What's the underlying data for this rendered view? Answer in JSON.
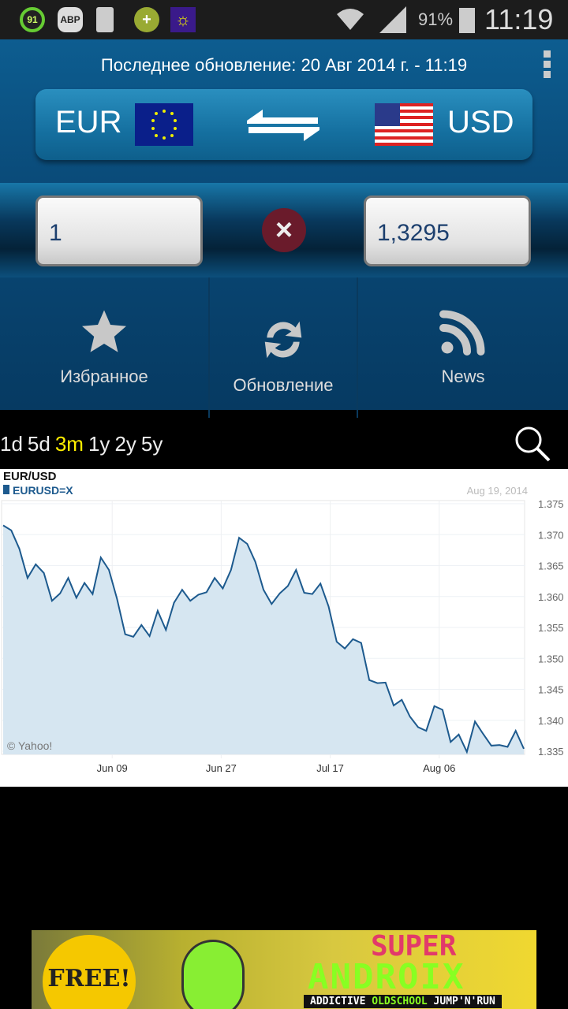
{
  "status_bar": {
    "notification_badge": "91",
    "adblock": "ABP",
    "battery": "91%",
    "time": "11:19",
    "icons": [
      "gauge-icon",
      "adblock-icon",
      "sim-icon",
      "plus-coin-icon",
      "lightbulb-icon",
      "wifi-icon",
      "signal-icon",
      "battery-icon"
    ]
  },
  "header": {
    "last_update": "Последнее обновление: 20 Авг 2014 г. - 11:19",
    "menu_icon": "overflow-menu-icon"
  },
  "converter": {
    "from_currency": "EUR",
    "to_currency": "USD",
    "from_amount": "1",
    "to_amount": "1,3295",
    "swap_icon": "swap-arrows-icon",
    "clear_icon": "clear-x-icon"
  },
  "actions": [
    {
      "label": "Избранное",
      "icon": "star-icon"
    },
    {
      "label": "Обновление",
      "icon": "refresh-icon"
    },
    {
      "label": "News",
      "icon": "rss-icon"
    }
  ],
  "periods": {
    "items": [
      "1d",
      "5d",
      "3m",
      "1y",
      "2y",
      "5y"
    ],
    "selected": "3m",
    "selected_color": "#ffee00"
  },
  "chart_data": {
    "type": "area",
    "title": "EUR/USD",
    "legend": "EURUSD=X",
    "date": "Aug 19, 2014",
    "credit": "© Yahoo!",
    "series_color": "#1d5a8e",
    "fill_color": "#d6e6f1",
    "ylim": [
      1.335,
      1.375
    ],
    "y_ticks": [
      "1.375",
      "1.370",
      "1.365",
      "1.360",
      "1.355",
      "1.350",
      "1.345",
      "1.340",
      "1.335"
    ],
    "x_tick_labels": [
      "Jun 09",
      "Jun 27",
      "Jul 17",
      "Aug 06"
    ],
    "grid": true,
    "legend_position": "top-left",
    "values": [
      1.3715,
      1.3707,
      1.3677,
      1.363,
      1.3652,
      1.3638,
      1.3593,
      1.3605,
      1.363,
      1.3598,
      1.3622,
      1.3604,
      1.3663,
      1.3643,
      1.3596,
      1.3539,
      1.3535,
      1.3554,
      1.3536,
      1.3577,
      1.3546,
      1.359,
      1.3611,
      1.3593,
      1.3603,
      1.3607,
      1.363,
      1.3613,
      1.3643,
      1.3695,
      1.3685,
      1.3656,
      1.3611,
      1.3588,
      1.3605,
      1.3617,
      1.3643,
      1.3606,
      1.3604,
      1.3621,
      1.3584,
      1.3527,
      1.3516,
      1.3531,
      1.3525,
      1.3465,
      1.346,
      1.3461,
      1.3424,
      1.3433,
      1.3406,
      1.3389,
      1.3383,
      1.3423,
      1.3417,
      1.3365,
      1.3377,
      1.3349,
      1.3398,
      1.3378,
      1.3359,
      1.336,
      1.3357,
      1.3383,
      1.3354
    ]
  },
  "ad": {
    "badge": "FREE!",
    "title_1": "SUPER",
    "title_2": "ANDROIX",
    "tagline_1": "ADDICTIVE ",
    "tagline_2": "OLDSCHOOL",
    "tagline_3": " JUMP'N'RUN"
  }
}
